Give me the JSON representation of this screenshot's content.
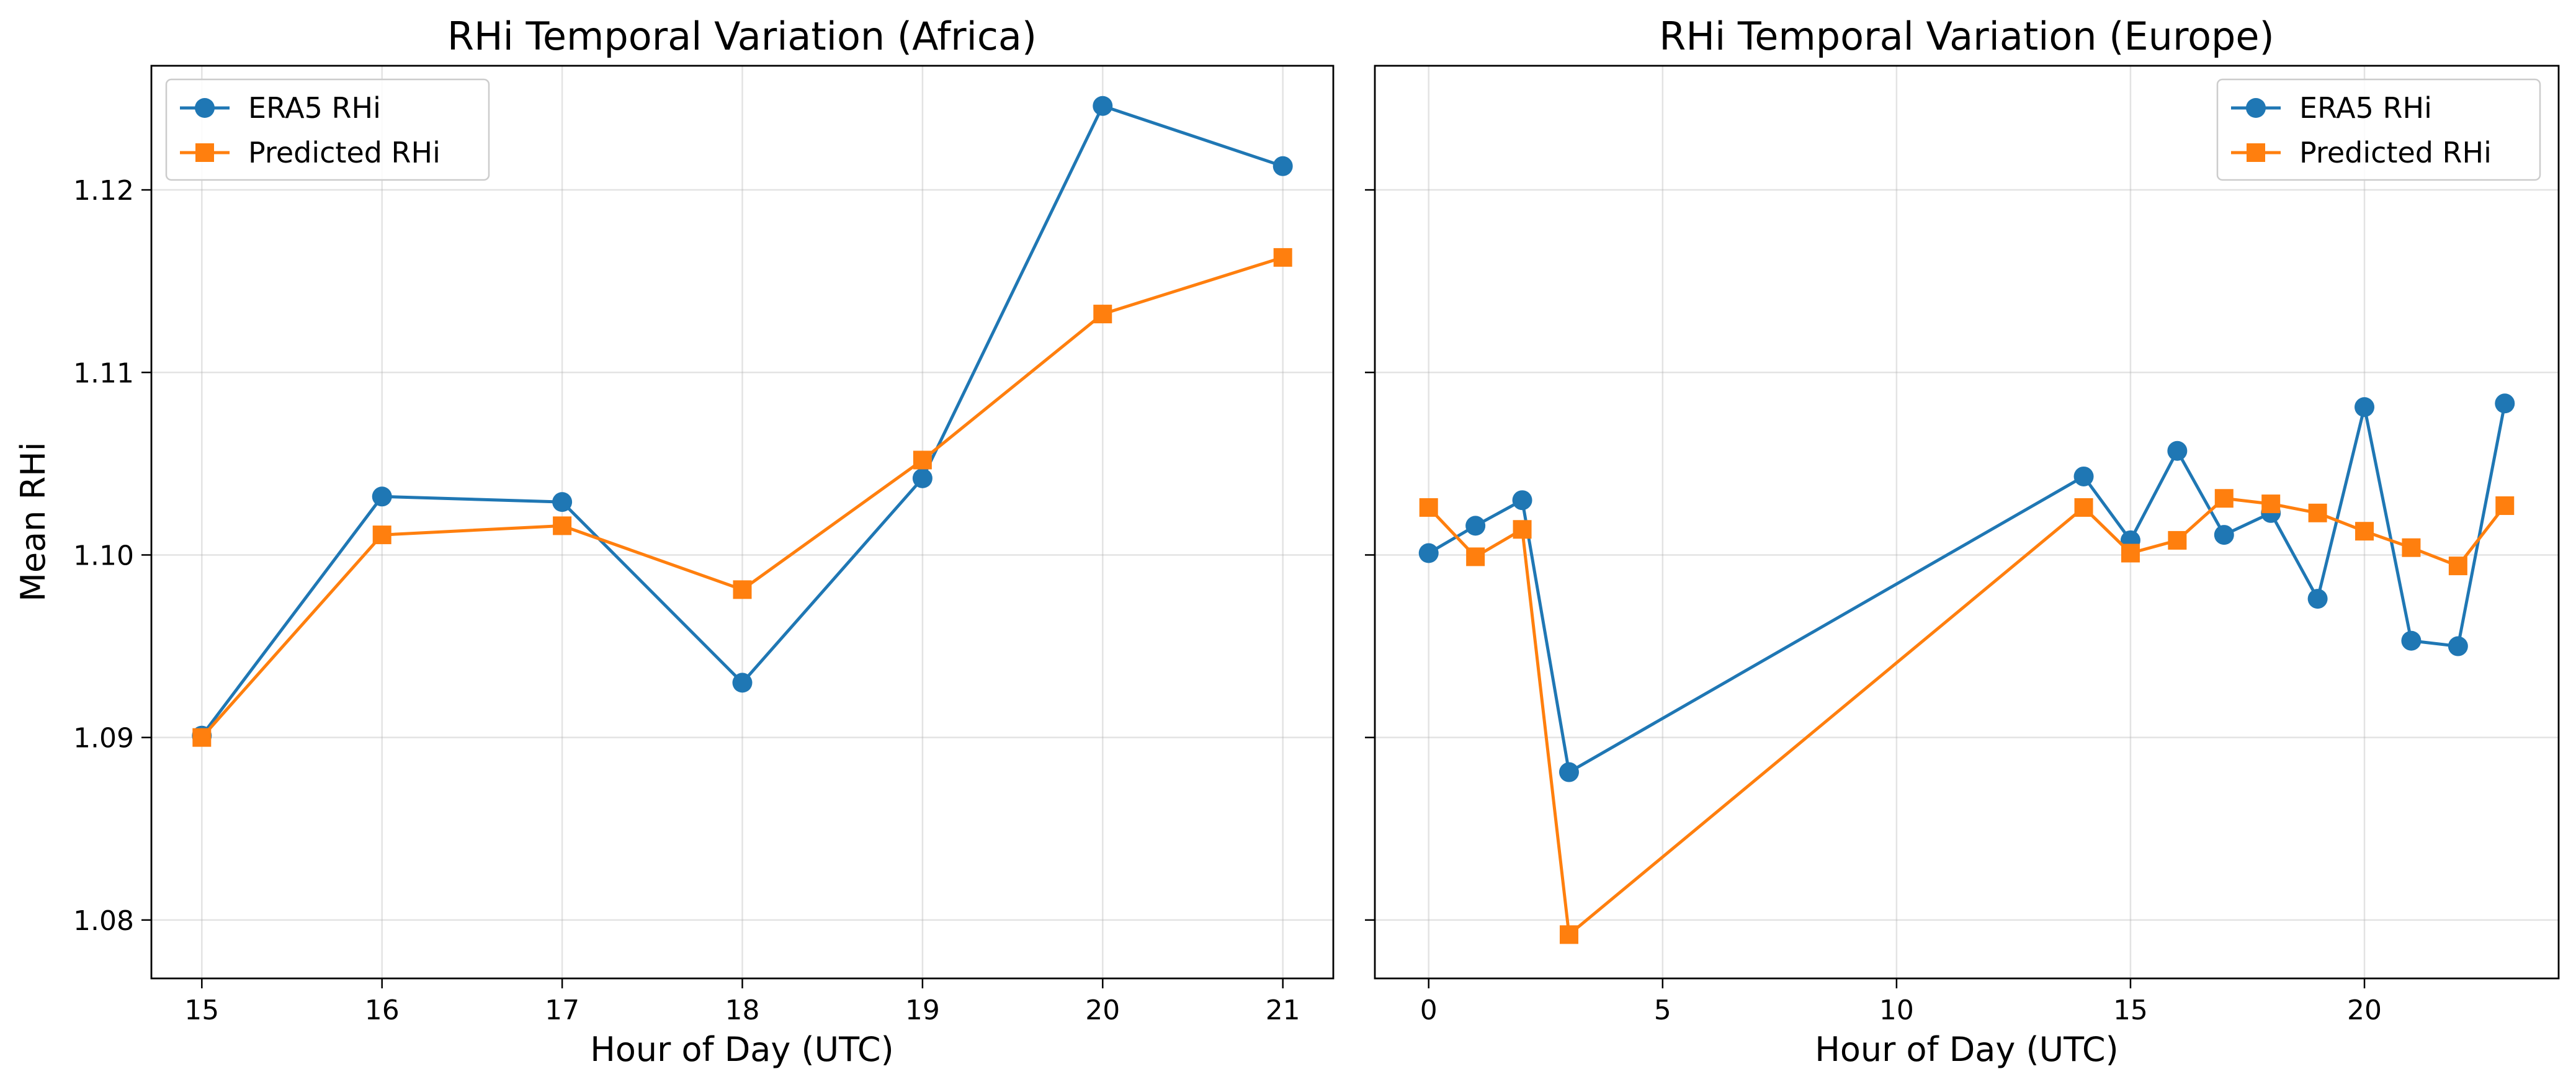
{
  "chart_data": [
    {
      "type": "line",
      "title": "RHi Temporal Variation (Africa)",
      "xlabel": "Hour of Day (UTC)",
      "ylabel": "Mean RHi",
      "xlim": [
        14.72,
        21.28
      ],
      "ylim": [
        1.0768,
        1.1268
      ],
      "xticks": [
        15,
        16,
        17,
        18,
        19,
        20,
        21
      ],
      "yticks": [
        1.08,
        1.09,
        1.1,
        1.11,
        1.12
      ],
      "ytick_labels": [
        "1.08",
        "1.09",
        "1.10",
        "1.11",
        "1.12"
      ],
      "grid": true,
      "legend_position": "top-left",
      "x": [
        15,
        16,
        17,
        18,
        19,
        20,
        21
      ],
      "series": [
        {
          "name": "ERA5 RHi",
          "color": "#1f77b4",
          "marker": "circle",
          "values": [
            1.0901,
            1.1032,
            1.1029,
            1.093,
            1.1042,
            1.1246,
            1.1213
          ]
        },
        {
          "name": "Predicted RHi",
          "color": "#ff7f0e",
          "marker": "square",
          "values": [
            1.09,
            1.1011,
            1.1016,
            1.0981,
            1.1052,
            1.1132,
            1.1163
          ]
        }
      ]
    },
    {
      "type": "line",
      "title": "RHi Temporal Variation (Europe)",
      "xlabel": "Hour of Day (UTC)",
      "ylabel": "",
      "xlim": [
        -1.15,
        24.15
      ],
      "ylim": [
        1.0768,
        1.1268
      ],
      "xticks": [
        0,
        5,
        10,
        15,
        20
      ],
      "yticks": [
        1.08,
        1.09,
        1.1,
        1.11,
        1.12
      ],
      "ytick_labels": [
        "",
        "",
        "",
        "",
        ""
      ],
      "grid": true,
      "legend_position": "top-right",
      "x": [
        0,
        1,
        2,
        3,
        14,
        15,
        16,
        17,
        18,
        19,
        20,
        21,
        22,
        23
      ],
      "series": [
        {
          "name": "ERA5 RHi",
          "color": "#1f77b4",
          "marker": "circle",
          "values": [
            1.1001,
            1.1016,
            1.103,
            1.0881,
            1.1043,
            1.1008,
            1.1057,
            1.1011,
            1.1023,
            1.0976,
            1.1081,
            1.0953,
            1.095,
            1.1083
          ]
        },
        {
          "name": "Predicted RHi",
          "color": "#ff7f0e",
          "marker": "square",
          "values": [
            1.1026,
            1.0999,
            1.1014,
            1.0792,
            1.1026,
            1.1001,
            1.1008,
            1.1031,
            1.1028,
            1.1023,
            1.1013,
            1.1004,
            1.0994,
            1.1027
          ]
        }
      ]
    }
  ]
}
